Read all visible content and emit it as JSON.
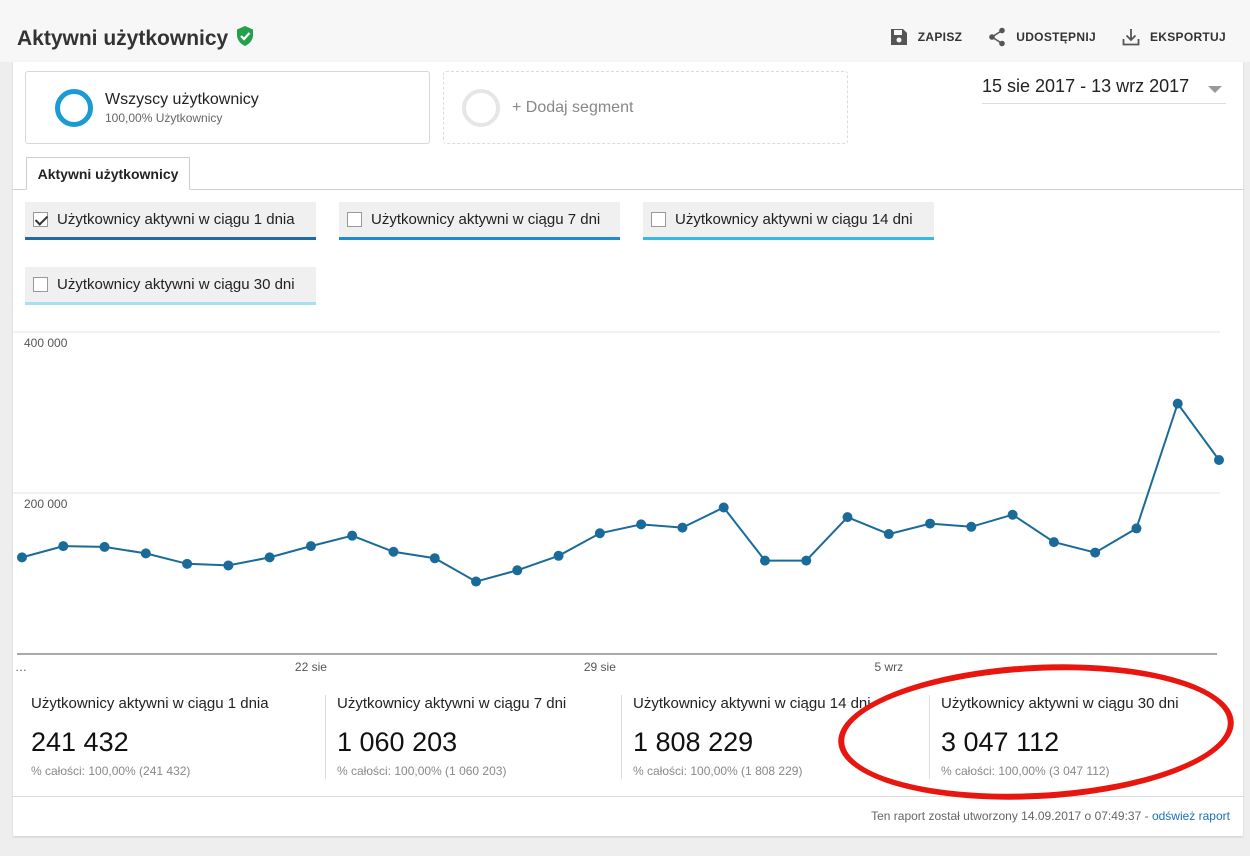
{
  "header": {
    "title": "Aktywni użytkownicy",
    "actions": [
      {
        "label": "ZAPISZ",
        "icon": "save-icon"
      },
      {
        "label": "UDOSTĘPNIJ",
        "icon": "share-icon"
      },
      {
        "label": "EKSPORTUJ",
        "icon": "download-icon"
      }
    ]
  },
  "segments": {
    "active": {
      "name": "Wszyscy użytkownicy",
      "sub": "100,00% Użytkownicy"
    },
    "add_label": "+ Dodaj segment"
  },
  "date_range": "15 sie 2017 - 13 wrz 2017",
  "tab_label": "Aktywni użytkownicy",
  "metrics": [
    {
      "label": "Użytkownicy aktywni w ciągu 1 dnia",
      "checked": true,
      "color": "#1f6aa5"
    },
    {
      "label": "Użytkownicy aktywni w ciągu 7 dni",
      "checked": false,
      "color": "#1f8ad1"
    },
    {
      "label": "Użytkownicy aktywni w ciągu 14 dni",
      "checked": false,
      "color": "#38b8e4"
    },
    {
      "label": "Użytkownicy aktywni w ciągu 30 dni",
      "checked": false,
      "color": "#a9def3"
    }
  ],
  "chart_data": {
    "type": "line",
    "x": [
      "15 sie",
      "16 sie",
      "17 sie",
      "18 sie",
      "19 sie",
      "20 sie",
      "21 sie",
      "22 sie",
      "23 sie",
      "24 sie",
      "25 sie",
      "26 sie",
      "27 sie",
      "28 sie",
      "29 sie",
      "30 sie",
      "31 sie",
      "1 wrz",
      "2 wrz",
      "3 wrz",
      "4 wrz",
      "5 wrz",
      "6 wrz",
      "7 wrz",
      "8 wrz",
      "9 wrz",
      "10 wrz",
      "11 wrz",
      "12 wrz",
      "13 wrz"
    ],
    "x_tick_labels": [
      "…",
      "22 sie",
      "29 sie",
      "5 wrz"
    ],
    "y_tick_labels": [
      "400 000",
      "200 000"
    ],
    "series": [
      {
        "name": "Użytkownicy aktywni w ciągu 1 dnia",
        "color": "#1a6b9a",
        "values": [
          120000,
          134000,
          133000,
          125000,
          112000,
          110000,
          120000,
          134000,
          147000,
          127000,
          119000,
          90000,
          104000,
          122000,
          150000,
          161000,
          157000,
          182000,
          116000,
          116000,
          170000,
          149000,
          162000,
          158000,
          173000,
          139000,
          126000,
          156000,
          311000,
          241000
        ]
      }
    ],
    "ylim": [
      0,
      400000
    ],
    "grid": true
  },
  "summary": [
    {
      "label": "Użytkownicy aktywni w ciągu 1 dnia",
      "value": "241 432",
      "pct": "% całości: 100,00% (241 432)"
    },
    {
      "label": "Użytkownicy aktywni w ciągu 7 dni",
      "value": "1 060 203",
      "pct": "% całości: 100,00% (1 060 203)"
    },
    {
      "label": "Użytkownicy aktywni w ciągu 14 dni",
      "value": "1 808 229",
      "pct": "% całości: 100,00% (1 808 229)"
    },
    {
      "label": "Użytkownicy aktywni w ciągu 30 dni",
      "value": "3 047 112",
      "pct": "% całości: 100,00% (3 047 112)"
    }
  ],
  "footer": {
    "text": "Ten raport został utworzony 14.09.2017 o 07:49:37 - ",
    "link": "odśwież raport"
  }
}
